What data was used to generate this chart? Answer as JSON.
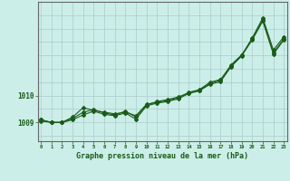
{
  "title": "Graphe pression niveau de la mer (hPa)",
  "background_color": "#cceee8",
  "grid_color": "#aacccc",
  "line_color": "#1a5c1a",
  "x_ticks": [
    0,
    1,
    2,
    3,
    4,
    5,
    6,
    7,
    8,
    9,
    10,
    11,
    12,
    13,
    14,
    15,
    16,
    17,
    18,
    19,
    20,
    21,
    22,
    23
  ],
  "y_ticks": [
    1009,
    1010
  ],
  "ylim": [
    1008.3,
    1013.5
  ],
  "xlim": [
    -0.3,
    23.3
  ],
  "series1": [
    1009.1,
    1009.0,
    1009.0,
    1009.2,
    1009.55,
    1009.45,
    1009.38,
    1009.32,
    1009.38,
    1009.25,
    1009.68,
    1009.75,
    1009.82,
    1009.92,
    1010.12,
    1010.22,
    1010.5,
    1010.6,
    1011.1,
    1011.5,
    1012.15,
    1012.9,
    1011.7,
    1012.2
  ],
  "series2": [
    1009.05,
    1009.0,
    1009.0,
    1009.15,
    1009.38,
    1009.48,
    1009.35,
    1009.28,
    1009.42,
    1009.2,
    1009.65,
    1009.78,
    1009.85,
    1009.95,
    1010.1,
    1010.2,
    1010.45,
    1010.58,
    1011.15,
    1011.52,
    1012.1,
    1012.82,
    1011.6,
    1012.12
  ],
  "series3": [
    1009.1,
    1009.0,
    1009.0,
    1009.1,
    1009.28,
    1009.42,
    1009.3,
    1009.25,
    1009.35,
    1009.12,
    1009.62,
    1009.72,
    1009.78,
    1009.88,
    1010.08,
    1010.18,
    1010.42,
    1010.52,
    1011.08,
    1011.48,
    1012.08,
    1012.78,
    1011.55,
    1012.08
  ]
}
